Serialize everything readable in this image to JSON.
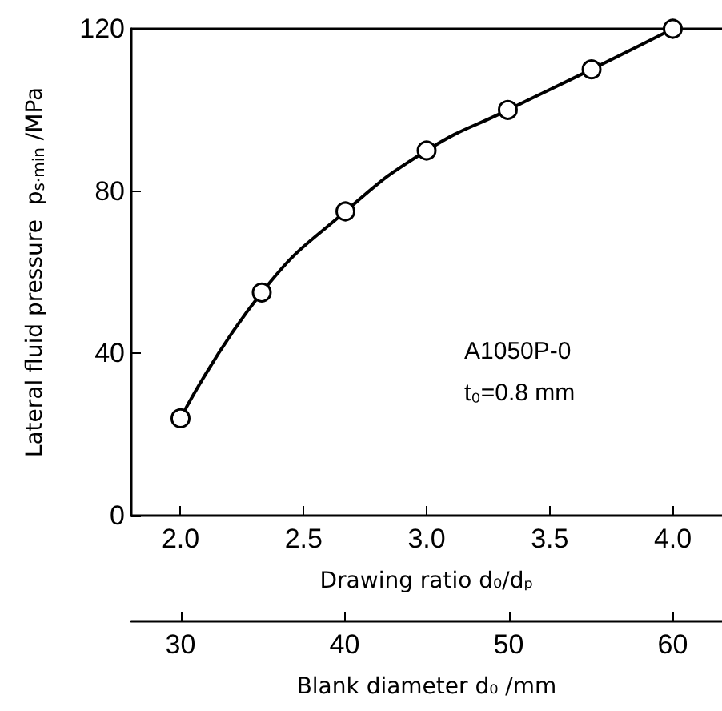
{
  "chart_data": {
    "type": "line",
    "xlabel": "Drawing ratio d₀/dₚ",
    "ylabel": "Lateral fluid pressure  p$_{s·min}$ /MPa",
    "x2label": "Blank diameter d₀ /mm",
    "x": [
      2.0,
      2.33,
      2.67,
      3.0,
      3.33,
      3.67,
      4.0
    ],
    "series": [
      {
        "color": "#000000",
        "values": [
          24,
          55,
          75,
          90,
          100,
          110,
          120
        ]
      }
    ],
    "xlim": [
      1.8,
      4.2
    ],
    "xticks": [
      {
        "value": 2,
        "label": "2.0"
      },
      2.5,
      {
        "value": 3,
        "label": "3.0"
      },
      3.5,
      {
        "value": 4,
        "label": "4.0"
      }
    ],
    "x2lim": [
      27,
      63
    ],
    "x2ticks": [
      30,
      40,
      50,
      60
    ],
    "ylim": [
      0,
      120
    ],
    "yticks": [
      0,
      40,
      80,
      120
    ],
    "annotations": [
      "A1050P-0",
      "t₀=0.8 mm"
    ],
    "marker": "circle",
    "line_style": "solid"
  }
}
